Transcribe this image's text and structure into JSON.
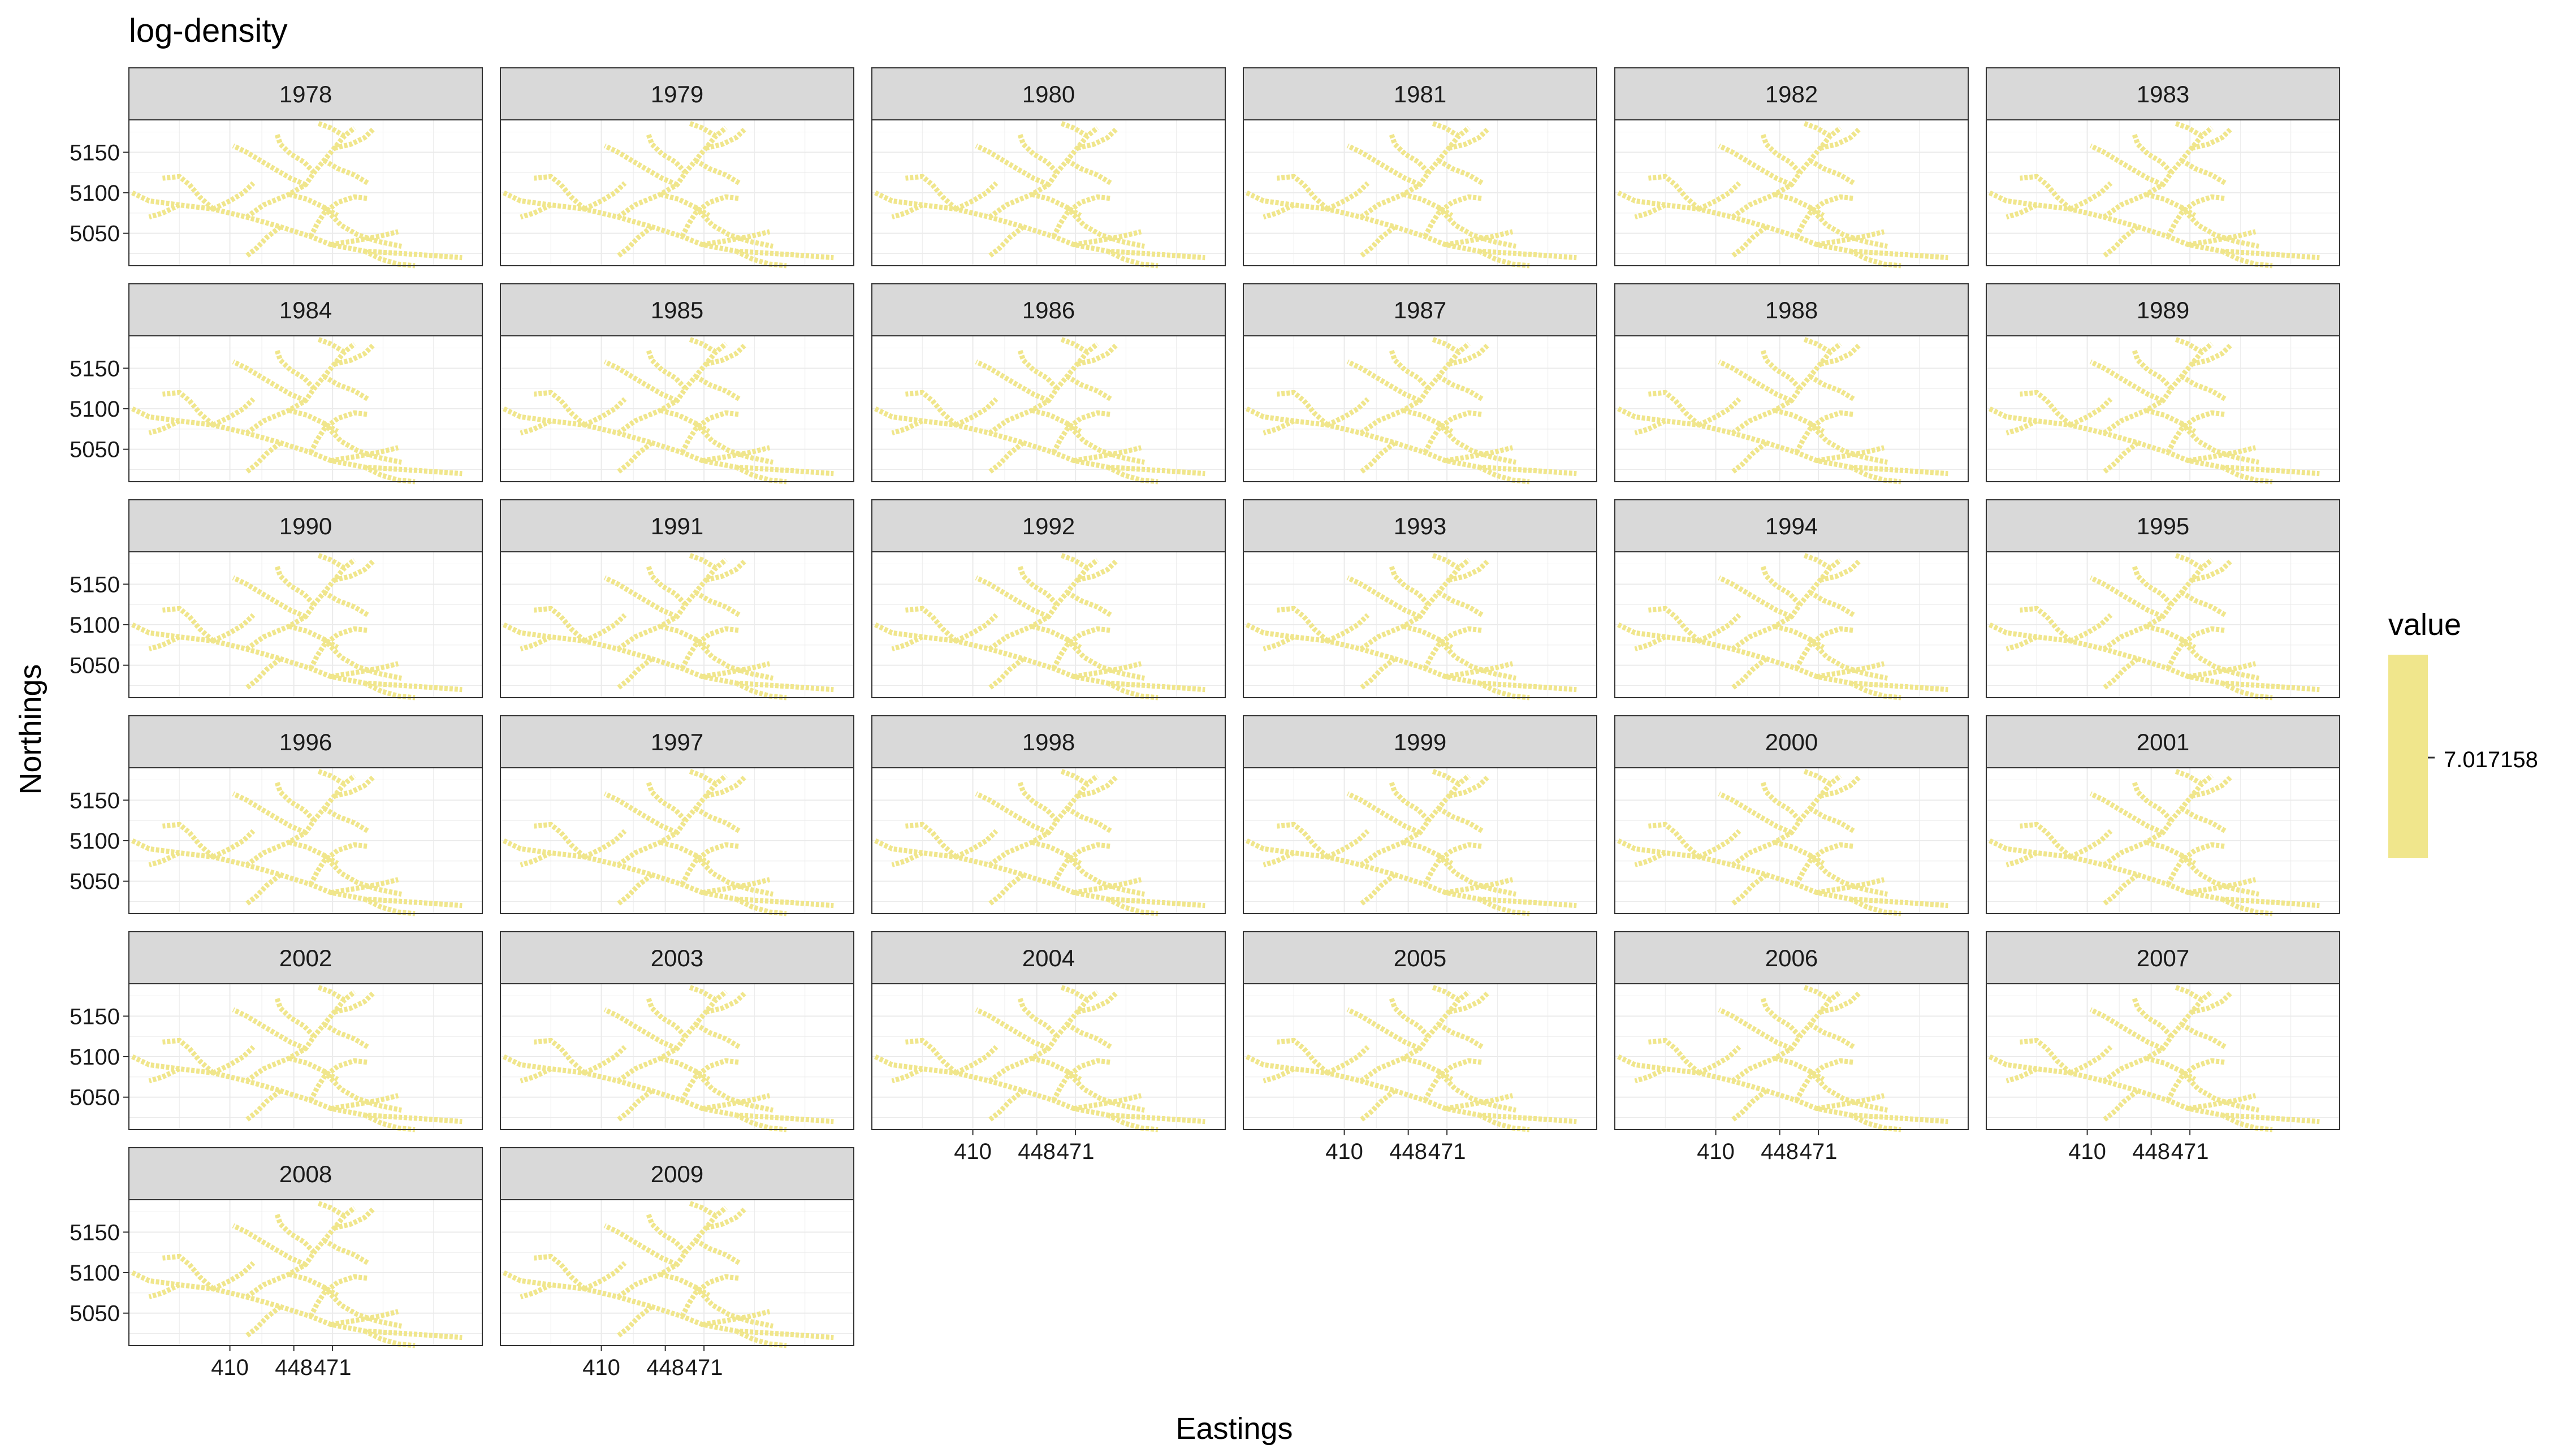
{
  "chart_data": {
    "type": "heatmap",
    "title": "log-density",
    "xlabel": "Eastings",
    "ylabel": "Northings",
    "facets": [
      "1978",
      "1979",
      "1980",
      "1981",
      "1982",
      "1983",
      "1984",
      "1985",
      "1986",
      "1987",
      "1988",
      "1989",
      "1990",
      "1991",
      "1992",
      "1993",
      "1994",
      "1995",
      "1996",
      "1997",
      "1998",
      "1999",
      "2000",
      "2001",
      "2002",
      "2003",
      "2004",
      "2005",
      "2006",
      "2007",
      "2008",
      "2009"
    ],
    "xlim": [
      350,
      560
    ],
    "ylim": [
      5010,
      5190
    ],
    "x_ticks": [
      410,
      448,
      471
    ],
    "y_ticks": [
      5050,
      5100,
      5150
    ],
    "value": 7.017158,
    "fill_color": "#F0E68C",
    "legend": {
      "title": "value",
      "labels": [
        "7.017158"
      ],
      "position": "right"
    },
    "grid": true,
    "panel_border": true
  }
}
